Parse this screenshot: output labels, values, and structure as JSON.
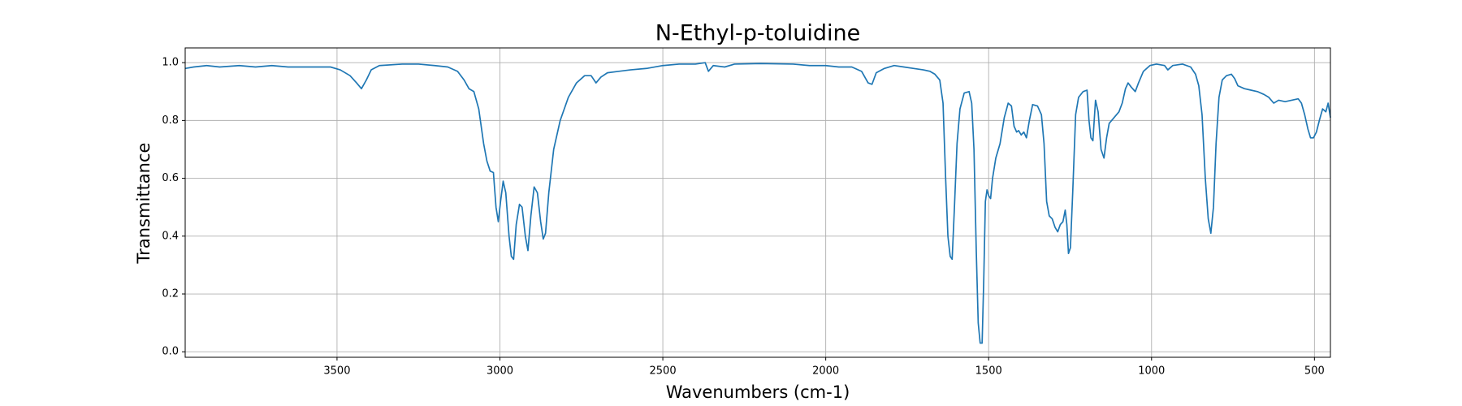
{
  "chart_data": {
    "type": "line",
    "title": "N-Ethyl-p-toluidine",
    "x_label": "Wavenumbers (cm-1)",
    "y_label": "Transmittance",
    "color": "#1f77b4",
    "grid": true,
    "xlim": [
      3966,
      451
    ],
    "ylim": [
      -0.019,
      1.051
    ],
    "xticks": [
      3500,
      3000,
      2500,
      2000,
      1500,
      1000,
      500
    ],
    "yticks": [
      {
        "value": 0,
        "label": "0.0"
      },
      0.2,
      0.4,
      0.6,
      0.8,
      {
        "value": 1,
        "label": "1.0"
      }
    ],
    "x": [
      3966,
      3940,
      3900,
      3860,
      3800,
      3750,
      3700,
      3650,
      3600,
      3550,
      3520,
      3490,
      3460,
      3440,
      3425,
      3410,
      3395,
      3370,
      3300,
      3250,
      3200,
      3160,
      3130,
      3110,
      3095,
      3080,
      3065,
      3050,
      3040,
      3030,
      3020,
      3012,
      3005,
      2998,
      2990,
      2982,
      2972,
      2965,
      2958,
      2950,
      2940,
      2932,
      2922,
      2914,
      2905,
      2895,
      2885,
      2875,
      2867,
      2860,
      2850,
      2835,
      2815,
      2790,
      2765,
      2740,
      2720,
      2705,
      2690,
      2670,
      2600,
      2550,
      2500,
      2450,
      2400,
      2370,
      2360,
      2345,
      2310,
      2280,
      2200,
      2100,
      2050,
      2000,
      1960,
      1920,
      1890,
      1870,
      1858,
      1845,
      1820,
      1790,
      1760,
      1730,
      1700,
      1680,
      1665,
      1650,
      1640,
      1632,
      1625,
      1618,
      1612,
      1605,
      1597,
      1588,
      1575,
      1560,
      1552,
      1545,
      1538,
      1532,
      1526,
      1520,
      1515,
      1510,
      1505,
      1500,
      1494,
      1488,
      1478,
      1465,
      1452,
      1440,
      1430,
      1422,
      1414,
      1408,
      1400,
      1392,
      1384,
      1375,
      1365,
      1350,
      1338,
      1330,
      1322,
      1314,
      1305,
      1296,
      1288,
      1280,
      1272,
      1265,
      1260,
      1255,
      1249,
      1242,
      1233,
      1224,
      1210,
      1198,
      1192,
      1186,
      1180,
      1172,
      1164,
      1155,
      1146,
      1138,
      1130,
      1115,
      1100,
      1090,
      1080,
      1072,
      1062,
      1050,
      1040,
      1025,
      1005,
      985,
      960,
      950,
      935,
      905,
      880,
      865,
      855,
      845,
      835,
      826,
      818,
      810,
      802,
      793,
      783,
      770,
      755,
      745,
      735,
      715,
      695,
      675,
      655,
      640,
      625,
      610,
      590,
      570,
      550,
      540,
      530,
      520,
      512,
      503,
      494,
      485,
      475,
      465,
      458,
      451
    ],
    "values": [
      0.98,
      0.985,
      0.99,
      0.985,
      0.99,
      0.985,
      0.99,
      0.985,
      0.985,
      0.985,
      0.985,
      0.975,
      0.955,
      0.93,
      0.91,
      0.94,
      0.975,
      0.99,
      0.995,
      0.995,
      0.99,
      0.985,
      0.97,
      0.94,
      0.91,
      0.9,
      0.84,
      0.72,
      0.66,
      0.625,
      0.62,
      0.5,
      0.45,
      0.52,
      0.59,
      0.55,
      0.4,
      0.33,
      0.32,
      0.44,
      0.51,
      0.5,
      0.4,
      0.35,
      0.47,
      0.57,
      0.55,
      0.45,
      0.39,
      0.41,
      0.55,
      0.7,
      0.8,
      0.88,
      0.93,
      0.955,
      0.955,
      0.93,
      0.95,
      0.965,
      0.975,
      0.98,
      0.99,
      0.995,
      0.995,
      1.0,
      0.97,
      0.99,
      0.985,
      0.995,
      0.997,
      0.995,
      0.99,
      0.99,
      0.985,
      0.985,
      0.97,
      0.93,
      0.925,
      0.965,
      0.98,
      0.99,
      0.985,
      0.98,
      0.975,
      0.97,
      0.96,
      0.94,
      0.86,
      0.6,
      0.4,
      0.33,
      0.32,
      0.5,
      0.72,
      0.84,
      0.895,
      0.9,
      0.86,
      0.7,
      0.35,
      0.1,
      0.03,
      0.03,
      0.25,
      0.52,
      0.56,
      0.54,
      0.53,
      0.6,
      0.67,
      0.72,
      0.81,
      0.86,
      0.85,
      0.78,
      0.76,
      0.765,
      0.75,
      0.76,
      0.74,
      0.8,
      0.855,
      0.85,
      0.82,
      0.72,
      0.52,
      0.47,
      0.46,
      0.43,
      0.415,
      0.44,
      0.45,
      0.49,
      0.44,
      0.34,
      0.36,
      0.55,
      0.82,
      0.88,
      0.9,
      0.905,
      0.8,
      0.74,
      0.73,
      0.87,
      0.83,
      0.7,
      0.67,
      0.74,
      0.79,
      0.81,
      0.83,
      0.86,
      0.91,
      0.93,
      0.915,
      0.9,
      0.93,
      0.97,
      0.99,
      0.995,
      0.99,
      0.975,
      0.99,
      0.995,
      0.985,
      0.96,
      0.92,
      0.82,
      0.6,
      0.46,
      0.41,
      0.5,
      0.72,
      0.88,
      0.94,
      0.955,
      0.96,
      0.945,
      0.92,
      0.91,
      0.905,
      0.9,
      0.89,
      0.88,
      0.86,
      0.87,
      0.865,
      0.87,
      0.875,
      0.86,
      0.82,
      0.77,
      0.74,
      0.74,
      0.76,
      0.8,
      0.84,
      0.83,
      0.86,
      0.81
    ]
  }
}
